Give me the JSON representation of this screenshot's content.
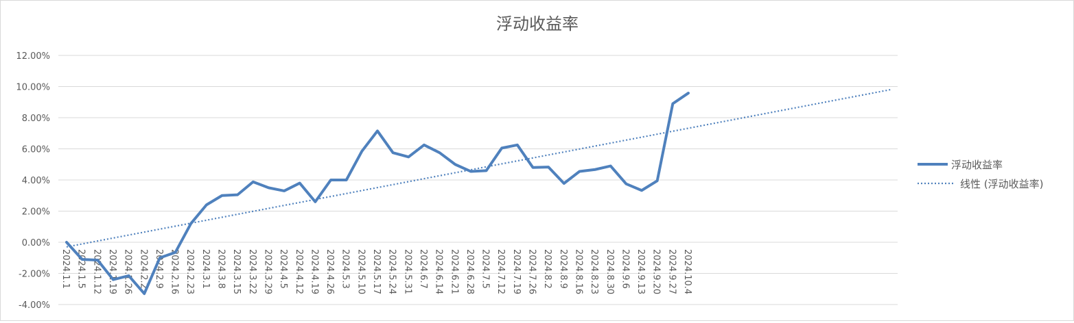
{
  "chart_data": {
    "type": "line",
    "title": "浮动收益率",
    "xlabel": "",
    "ylabel": "",
    "ylim": [
      -0.04,
      0.12
    ],
    "yticks": [
      -0.04,
      -0.02,
      0.0,
      0.02,
      0.04,
      0.06,
      0.08,
      0.1,
      0.12
    ],
    "ytick_labels": [
      "-4.00%",
      "-2.00%",
      "0.00%",
      "2.00%",
      "4.00%",
      "6.00%",
      "8.00%",
      "10.00%",
      "12.00%"
    ],
    "categories": [
      "2024.1.1",
      "2024.1.5",
      "2024.1.12",
      "2024.1.19",
      "2024.1.26",
      "2024.2.2",
      "2024.2.9",
      "2024.2.16",
      "2024.2.23",
      "2024.3.1",
      "2024.3.8",
      "2024.3.15",
      "2024.3.22",
      "2024.3.29",
      "2024.4.5",
      "2024.4.12",
      "2024.4.19",
      "2024.4.26",
      "2024.5.3",
      "2024.5.10",
      "2024.5.17",
      "2024.5.24",
      "2024.5.31",
      "2024.6.7",
      "2024.6.14",
      "2024.6.21",
      "2024.6.28",
      "2024.7.5",
      "2024.7.12",
      "2024.7.19",
      "2024.7.26",
      "2024.8.2",
      "2024.8.9",
      "2024.8.16",
      "2024.8.23",
      "2024.8.30",
      "2024.9.6",
      "2024.9.13",
      "2024.9.20",
      "2024.9.27",
      "2024.10.4"
    ],
    "series": [
      {
        "name": "浮动收益率",
        "color": "#4f81bd",
        "style": "solid",
        "values": [
          0.0,
          -0.011,
          -0.0115,
          -0.024,
          -0.0215,
          -0.033,
          -0.01,
          -0.0065,
          0.012,
          0.024,
          0.03,
          0.0305,
          0.0388,
          0.035,
          0.033,
          0.038,
          0.026,
          0.04,
          0.04,
          0.0585,
          0.0715,
          0.0575,
          0.0548,
          0.0625,
          0.0575,
          0.05,
          0.0455,
          0.046,
          0.0605,
          0.0625,
          0.048,
          0.0483,
          0.0378,
          0.0455,
          0.0467,
          0.049,
          0.0375,
          0.0333,
          0.0395,
          0.089,
          0.0958
        ]
      },
      {
        "name": "线性 (浮动收益率)",
        "color": "#4f81bd",
        "style": "dotted",
        "trend_start": -0.003,
        "trend_end": 0.098,
        "trend_end_index": 53
      }
    ],
    "grid": true,
    "legend_position": "right"
  }
}
